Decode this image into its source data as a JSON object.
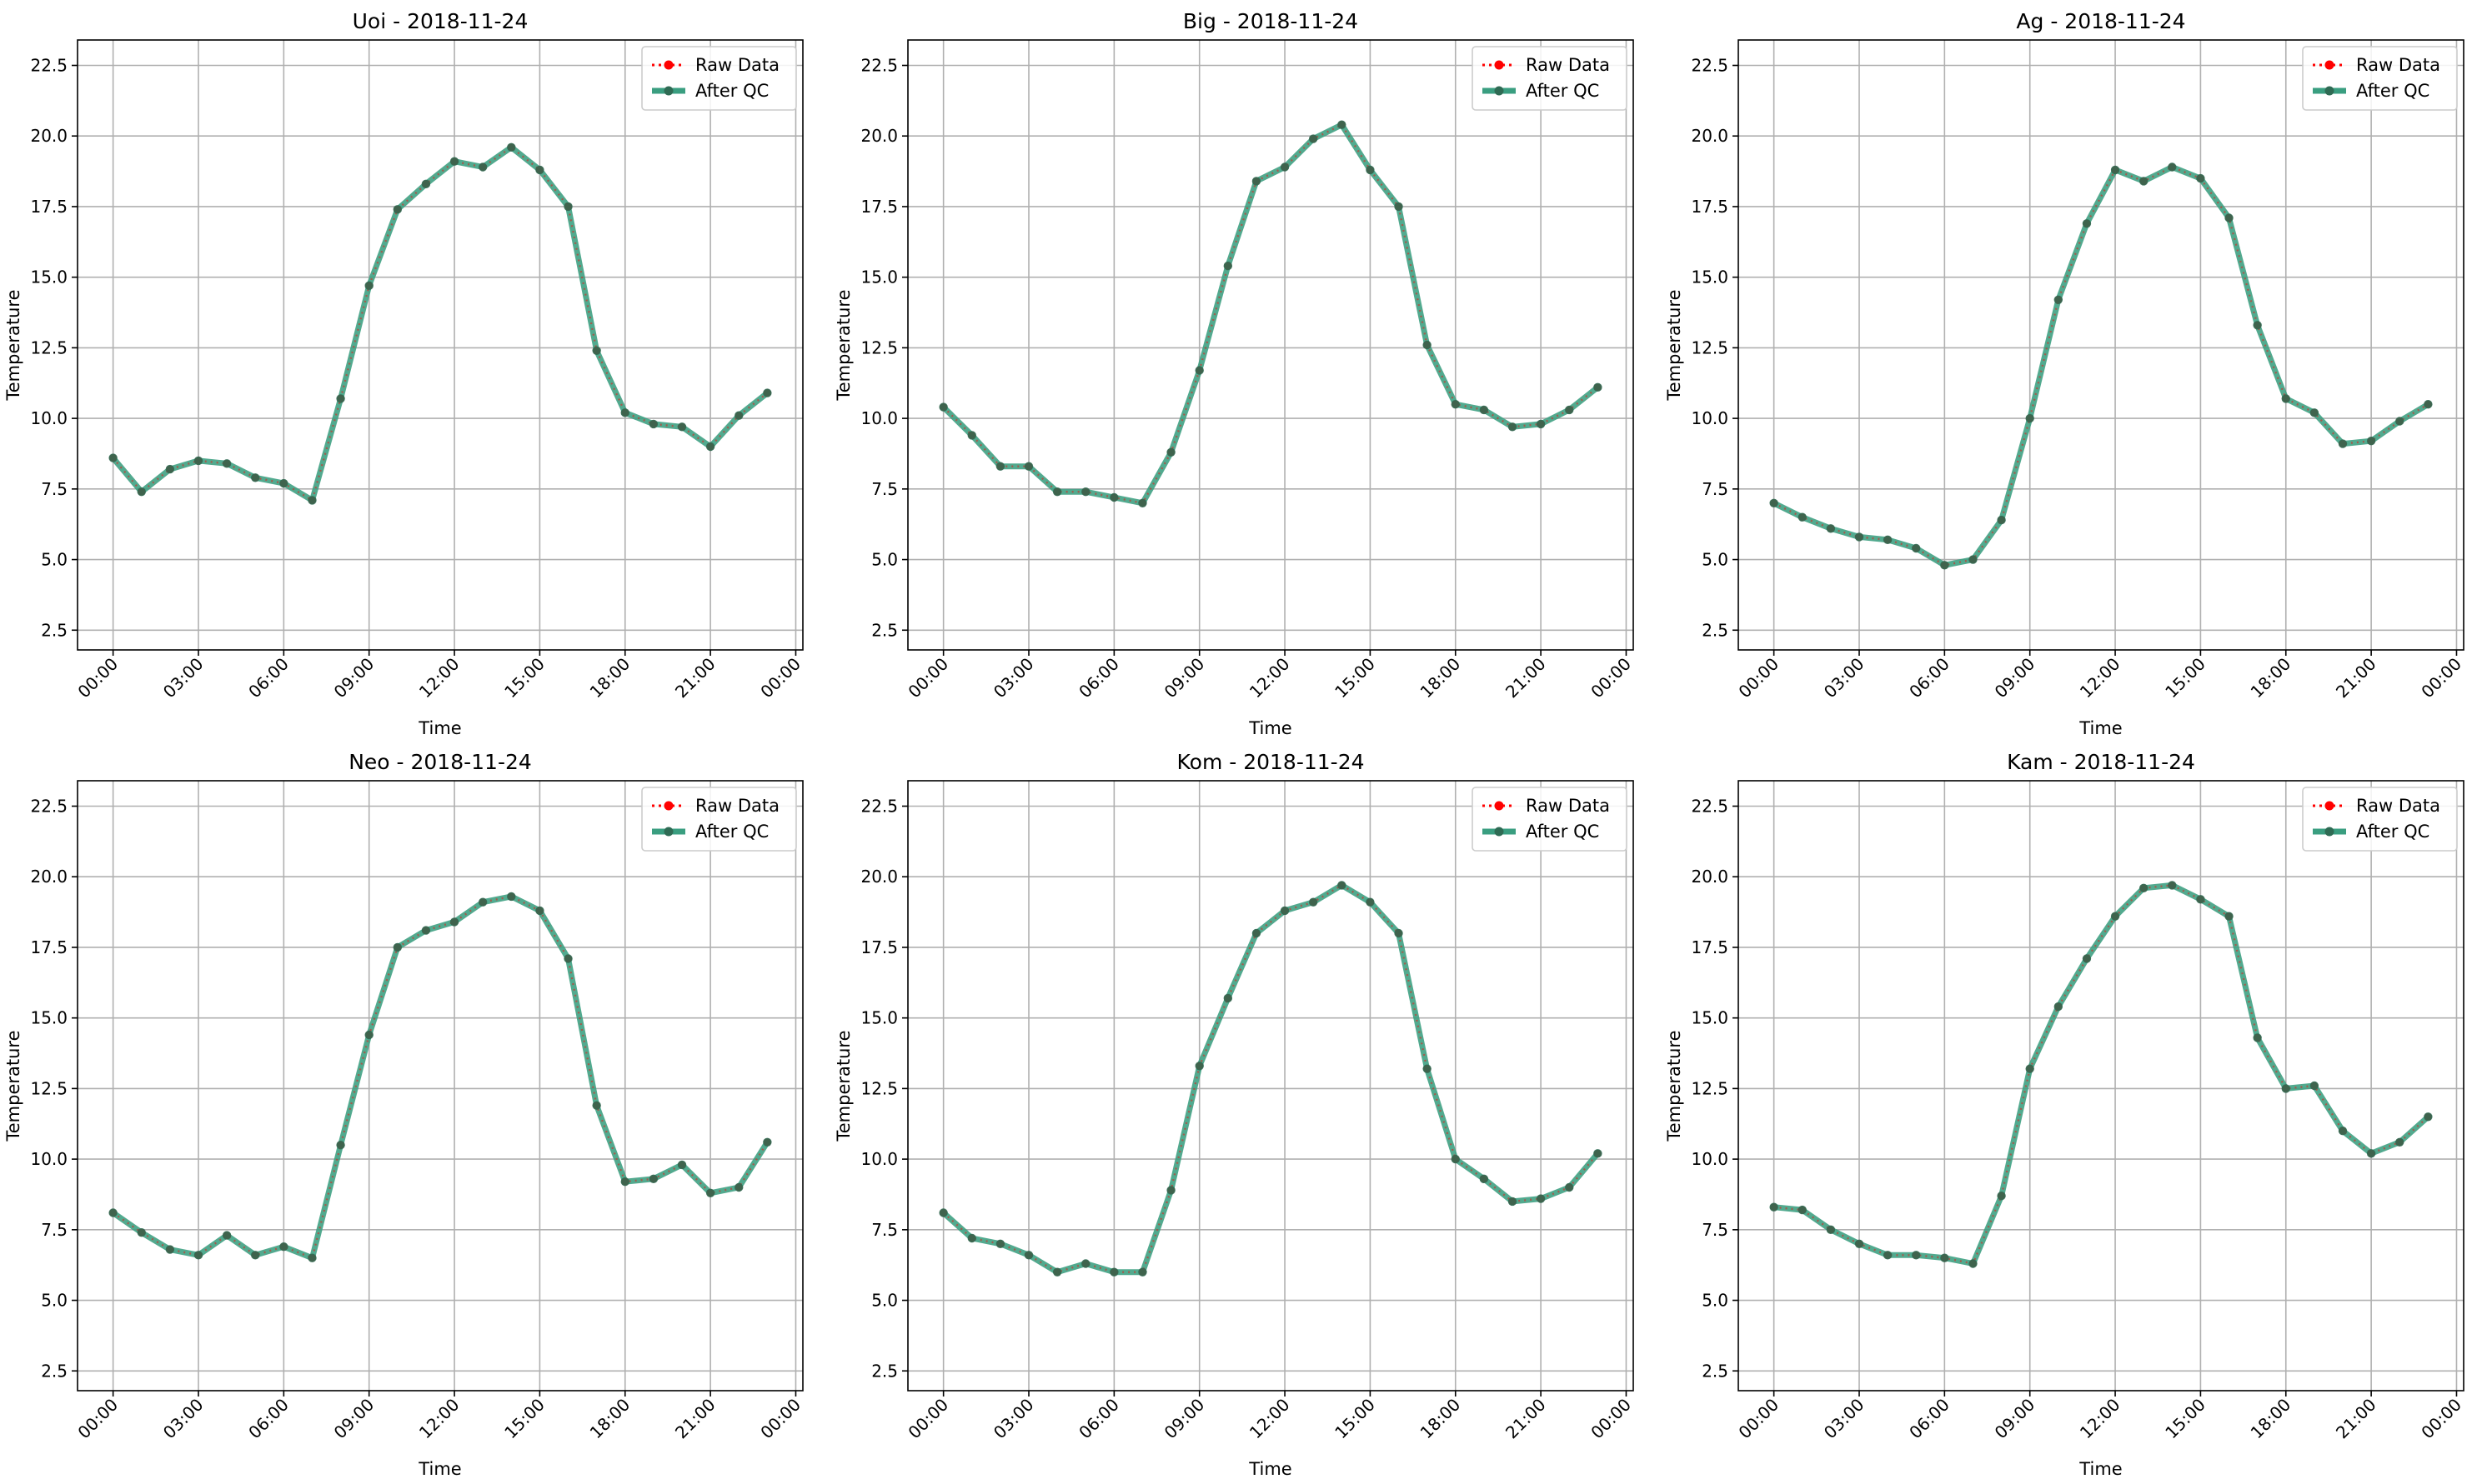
{
  "figure": {
    "legend_labels": [
      "Raw Data",
      "After QC"
    ],
    "legend_position": "top-right",
    "raw_color": "#ff0000",
    "qc_color": "#3a9e80",
    "marker_color": "#2f6b54",
    "grid": true
  },
  "x_tick_labels": [
    "00:00",
    "03:00",
    "06:00",
    "09:00",
    "12:00",
    "15:00",
    "18:00",
    "21:00",
    "00:00"
  ],
  "y_tick_labels": [
    "2.5",
    "5.0",
    "7.5",
    "10.0",
    "12.5",
    "15.0",
    "17.5",
    "20.0",
    "22.5"
  ],
  "chart_data": [
    {
      "type": "line",
      "title": "Uoi - 2018-11-24",
      "xlabel": "Time",
      "ylabel": "Temperature",
      "xlim": [
        -1.25,
        24.25
      ],
      "ylim": [
        1.8,
        23.4
      ],
      "x": [
        0,
        1,
        2,
        3,
        4,
        5,
        6,
        7,
        8,
        9,
        10,
        11,
        12,
        13,
        14,
        15,
        16,
        17,
        18,
        19,
        20,
        21,
        22,
        23
      ],
      "series": [
        {
          "name": "Raw Data",
          "values": [
            8.6,
            7.4,
            8.2,
            8.5,
            8.4,
            7.9,
            7.7,
            7.1,
            10.7,
            14.7,
            17.4,
            18.3,
            19.1,
            18.9,
            19.6,
            18.8,
            17.5,
            12.4,
            10.2,
            9.8,
            9.7,
            9.0,
            10.1,
            10.9
          ]
        },
        {
          "name": "After QC",
          "values": [
            8.6,
            7.4,
            8.2,
            8.5,
            8.4,
            7.9,
            7.7,
            7.1,
            10.7,
            14.7,
            17.4,
            18.3,
            19.1,
            18.9,
            19.6,
            18.8,
            17.5,
            12.4,
            10.2,
            9.8,
            9.7,
            9.0,
            10.1,
            10.9
          ]
        }
      ]
    },
    {
      "type": "line",
      "title": "Big - 2018-11-24",
      "xlabel": "Time",
      "ylabel": "Temperature",
      "xlim": [
        -1.25,
        24.25
      ],
      "ylim": [
        1.8,
        23.4
      ],
      "x": [
        0,
        1,
        2,
        3,
        4,
        5,
        6,
        7,
        8,
        9,
        10,
        11,
        12,
        13,
        14,
        15,
        16,
        17,
        18,
        19,
        20,
        21,
        22,
        23
      ],
      "series": [
        {
          "name": "Raw Data",
          "values": [
            10.4,
            9.4,
            8.3,
            8.3,
            7.4,
            7.4,
            7.2,
            7.0,
            8.8,
            11.7,
            15.4,
            18.4,
            18.9,
            19.9,
            20.4,
            18.8,
            17.5,
            12.6,
            10.5,
            10.3,
            9.7,
            9.8,
            10.3,
            11.1
          ]
        },
        {
          "name": "After QC",
          "values": [
            10.4,
            9.4,
            8.3,
            8.3,
            7.4,
            7.4,
            7.2,
            7.0,
            8.8,
            11.7,
            15.4,
            18.4,
            18.9,
            19.9,
            20.4,
            18.8,
            17.5,
            12.6,
            10.5,
            10.3,
            9.7,
            9.8,
            10.3,
            11.1
          ]
        }
      ]
    },
    {
      "type": "line",
      "title": "Ag - 2018-11-24",
      "xlabel": "Time",
      "ylabel": "Temperature",
      "xlim": [
        -1.25,
        24.25
      ],
      "ylim": [
        1.8,
        23.4
      ],
      "x": [
        0,
        1,
        2,
        3,
        4,
        5,
        6,
        7,
        8,
        9,
        10,
        11,
        12,
        13,
        14,
        15,
        16,
        17,
        18,
        19,
        20,
        21,
        22,
        23
      ],
      "series": [
        {
          "name": "Raw Data",
          "values": [
            7.0,
            6.5,
            6.1,
            5.8,
            5.7,
            5.4,
            4.8,
            5.0,
            6.4,
            10.0,
            14.2,
            16.9,
            18.8,
            18.4,
            18.9,
            18.5,
            17.1,
            13.3,
            10.7,
            10.2,
            9.1,
            9.2,
            9.9,
            10.5
          ]
        },
        {
          "name": "After QC",
          "values": [
            7.0,
            6.5,
            6.1,
            5.8,
            5.7,
            5.4,
            4.8,
            5.0,
            6.4,
            10.0,
            14.2,
            16.9,
            18.8,
            18.4,
            18.9,
            18.5,
            17.1,
            13.3,
            10.7,
            10.2,
            9.1,
            9.2,
            9.9,
            10.5
          ]
        }
      ]
    },
    {
      "type": "line",
      "title": "Neo - 2018-11-24",
      "xlabel": "Time",
      "ylabel": "Temperature",
      "xlim": [
        -1.25,
        24.25
      ],
      "ylim": [
        1.8,
        23.4
      ],
      "x": [
        0,
        1,
        2,
        3,
        4,
        5,
        6,
        7,
        8,
        9,
        10,
        11,
        12,
        13,
        14,
        15,
        16,
        17,
        18,
        19,
        20,
        21,
        22,
        23
      ],
      "series": [
        {
          "name": "Raw Data",
          "values": [
            8.1,
            7.4,
            6.8,
            6.6,
            7.3,
            6.6,
            6.9,
            6.5,
            10.5,
            14.4,
            17.5,
            18.1,
            18.4,
            19.1,
            19.3,
            18.8,
            17.1,
            11.9,
            9.2,
            9.3,
            9.8,
            8.8,
            9.0,
            10.6
          ]
        },
        {
          "name": "After QC",
          "values": [
            8.1,
            7.4,
            6.8,
            6.6,
            7.3,
            6.6,
            6.9,
            6.5,
            10.5,
            14.4,
            17.5,
            18.1,
            18.4,
            19.1,
            19.3,
            18.8,
            17.1,
            11.9,
            9.2,
            9.3,
            9.8,
            8.8,
            9.0,
            10.6
          ]
        }
      ]
    },
    {
      "type": "line",
      "title": "Kom - 2018-11-24",
      "xlabel": "Time",
      "ylabel": "Temperature",
      "xlim": [
        -1.25,
        24.25
      ],
      "ylim": [
        1.8,
        23.4
      ],
      "x": [
        0,
        1,
        2,
        3,
        4,
        5,
        6,
        7,
        8,
        9,
        10,
        11,
        12,
        13,
        14,
        15,
        16,
        17,
        18,
        19,
        20,
        21,
        22,
        23
      ],
      "series": [
        {
          "name": "Raw Data",
          "values": [
            8.1,
            7.2,
            7.0,
            6.6,
            6.0,
            6.3,
            6.0,
            6.0,
            8.9,
            13.3,
            15.7,
            18.0,
            18.8,
            19.1,
            19.7,
            19.1,
            18.0,
            13.2,
            10.0,
            9.3,
            8.5,
            8.6,
            9.0,
            10.2
          ]
        },
        {
          "name": "After QC",
          "values": [
            8.1,
            7.2,
            7.0,
            6.6,
            6.0,
            6.3,
            6.0,
            6.0,
            8.9,
            13.3,
            15.7,
            18.0,
            18.8,
            19.1,
            19.7,
            19.1,
            18.0,
            13.2,
            10.0,
            9.3,
            8.5,
            8.6,
            9.0,
            10.2
          ]
        }
      ]
    },
    {
      "type": "line",
      "title": "Kam - 2018-11-24",
      "xlabel": "Time",
      "ylabel": "Temperature",
      "xlim": [
        -1.25,
        24.25
      ],
      "ylim": [
        1.8,
        23.4
      ],
      "x": [
        0,
        1,
        2,
        3,
        4,
        5,
        6,
        7,
        8,
        9,
        10,
        11,
        12,
        13,
        14,
        15,
        16,
        17,
        18,
        19,
        20,
        21,
        22,
        23
      ],
      "series": [
        {
          "name": "Raw Data",
          "values": [
            8.3,
            8.2,
            7.5,
            7.0,
            6.6,
            6.6,
            6.5,
            6.3,
            8.7,
            13.2,
            15.4,
            17.1,
            18.6,
            19.6,
            19.7,
            19.2,
            18.6,
            14.3,
            12.5,
            12.6,
            11.0,
            10.2,
            10.6,
            11.5
          ]
        },
        {
          "name": "After QC",
          "values": [
            8.3,
            8.2,
            7.5,
            7.0,
            6.6,
            6.6,
            6.5,
            6.3,
            8.7,
            13.2,
            15.4,
            17.1,
            18.6,
            19.6,
            19.7,
            19.2,
            18.6,
            14.3,
            12.5,
            12.6,
            11.0,
            10.2,
            10.6,
            11.5
          ]
        }
      ]
    }
  ]
}
